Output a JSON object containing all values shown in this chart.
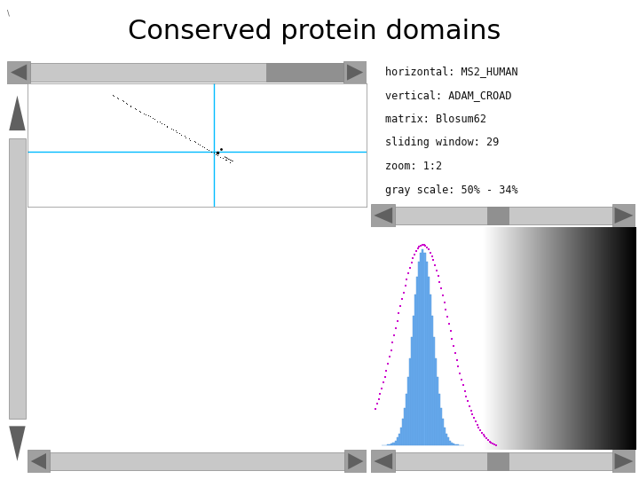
{
  "title": "Conserved protein domains",
  "title_fontsize": 22,
  "title_fontweight": "normal",
  "bg_color": "#c0c0c0",
  "bg_color_dark": "#a8a8a8",
  "white_bg": "#ffffff",
  "text_info": [
    "horizontal: MS2_HUMAN",
    "vertical: ADAM_CROAD",
    "matrix: Blosum62",
    "sliding window: 29",
    "zoom: 1:2",
    "gray scale: 50% - 34%"
  ],
  "text_fontsize": 8.5,
  "scrollbar_h_color": "#b8b8b8",
  "arrow_color": "#888888"
}
